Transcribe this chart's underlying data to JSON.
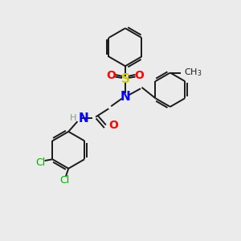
{
  "bg_color": "#ebebeb",
  "bond_color": "#1a1a1a",
  "N_color": "#0000ff",
  "O_color": "#ff0000",
  "S_color": "#cccc00",
  "Cl_color": "#00aa00",
  "H_color": "#7f9f7f",
  "line_width": 1.4,
  "figsize": [
    3.0,
    3.0
  ],
  "dpi": 100,
  "xlim": [
    0,
    10
  ],
  "ylim": [
    0,
    10
  ]
}
